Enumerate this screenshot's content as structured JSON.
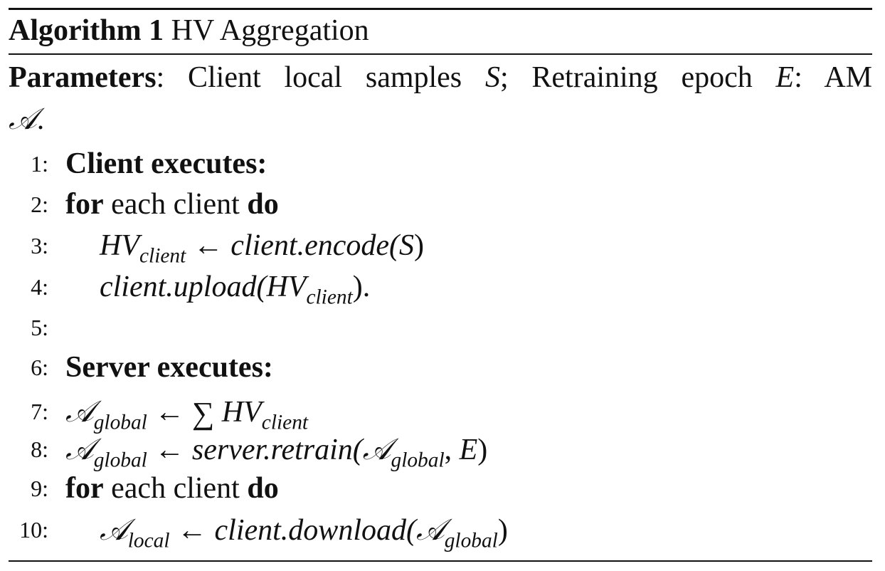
{
  "algorithm": {
    "label": "Algorithm 1",
    "title": "HV Aggregation"
  },
  "parameters": {
    "label": "Parameters",
    "text_1": ": Client local samples ",
    "var_s": "S",
    "text_2": "; Retraining epoch ",
    "var_e": "E",
    "text_3": ": AM",
    "var_a": "𝒜",
    "text_4": "."
  },
  "lines": [
    {
      "num": "1:",
      "content": "Client executes:"
    },
    {
      "num": "2:",
      "kw1": "for",
      "text": " each client ",
      "kw2": "do"
    },
    {
      "num": "3:",
      "lhs": "HV",
      "lhs_sub": "client",
      "arrow": " ← ",
      "rhs": "client.encode(",
      "arg": "S",
      "close": ")"
    },
    {
      "num": "4:",
      "fn": "client.upload(",
      "arg": "HV",
      "arg_sub": "client",
      "close": ")."
    },
    {
      "num": "5:"
    },
    {
      "num": "6:",
      "content": "Server executes:"
    },
    {
      "num": "7:",
      "lhs": "𝒜",
      "lhs_sub": "global",
      "arrow": " ← ",
      "sum": "∑",
      "rhs": " HV",
      "rhs_sub": "client"
    },
    {
      "num": "8:",
      "lhs": "𝒜",
      "lhs_sub": "global",
      "arrow": " ← ",
      "fn": "server.retrain(",
      "arg": "𝒜",
      "arg_sub": "global",
      "sep": ", ",
      "arg2": "E",
      "close": ")"
    },
    {
      "num": "9:",
      "kw1": "for",
      "text": " each client ",
      "kw2": "do"
    },
    {
      "num": "10:",
      "lhs": "𝒜",
      "lhs_sub": "local",
      "arrow": " ← ",
      "fn": "client.download(",
      "arg": "𝒜",
      "arg_sub": "global",
      "close": ")"
    }
  ]
}
